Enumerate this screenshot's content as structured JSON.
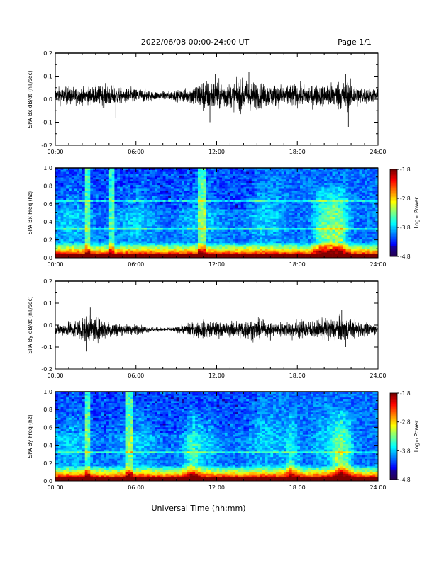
{
  "header": {
    "date_range": "2022/06/08  00:00-24:00 UT",
    "page": "Page 1/1"
  },
  "xaxis_label": "Universal Time (hh:mm)",
  "chart_data": [
    {
      "type": "line",
      "ylabel": "SPA Bx dB/dt (nT/sec)",
      "xlim": [
        0,
        24
      ],
      "ylim": [
        -0.2,
        0.2
      ],
      "x_ticks": [
        "00:00",
        "06:00",
        "12:00",
        "18:00",
        "24:00"
      ],
      "y_ticks": [
        "-0.2",
        "-0.1",
        "0.0",
        "0.1",
        "0.2"
      ],
      "grid": false,
      "x": [
        0,
        1,
        2,
        3,
        4,
        5,
        6,
        7,
        8,
        9,
        10,
        11,
        12,
        13,
        14,
        15,
        16,
        17,
        18,
        19,
        20,
        21,
        22,
        23,
        24
      ],
      "amplitude": [
        0.03,
        0.035,
        0.03,
        0.035,
        0.04,
        0.028,
        0.03,
        0.02,
        0.015,
        0.02,
        0.03,
        0.06,
        0.055,
        0.045,
        0.06,
        0.05,
        0.04,
        0.045,
        0.04,
        0.04,
        0.04,
        0.055,
        0.05,
        0.03,
        0.025
      ],
      "spikes": [
        {
          "x": 11.9,
          "y": 0.11
        },
        {
          "x": 11.5,
          "y": -0.1
        },
        {
          "x": 14.4,
          "y": 0.12
        },
        {
          "x": 21.6,
          "y": 0.11
        },
        {
          "x": 21.8,
          "y": -0.12
        },
        {
          "x": 4.5,
          "y": -0.08
        }
      ],
      "offset": 0.015
    },
    {
      "type": "heatmap",
      "ylabel": "SPA Bx Freq (hz)",
      "xlim": [
        0,
        24
      ],
      "ylim": [
        0,
        1
      ],
      "x_ticks": [
        "00:00",
        "06:00",
        "12:00",
        "18:00",
        "24:00"
      ],
      "y_ticks": [
        "0.0",
        "0.2",
        "0.4",
        "0.6",
        "0.8",
        "1.0"
      ],
      "colorbar": {
        "label": "Log₁₀ Power",
        "range": [
          -4.8,
          -1.8
        ],
        "ticks": [
          "-1.8",
          "-2.8",
          "-3.8",
          "-4.8"
        ]
      },
      "features": [
        {
          "t": 2.4,
          "kind": "line"
        },
        {
          "t": 4.2,
          "kind": "line"
        },
        {
          "t": 10.9,
          "kind": "line"
        },
        {
          "t": 19.8,
          "kind": "hump"
        },
        {
          "t": 20.6,
          "kind": "hump"
        },
        {
          "t": 21.3,
          "kind": "hump"
        }
      ],
      "horizontal_bands": [
        0.32,
        0.63
      ]
    },
    {
      "type": "line",
      "ylabel": "SPA By dB/dt (nT/sec)",
      "xlim": [
        0,
        24
      ],
      "ylim": [
        -0.2,
        0.2
      ],
      "x_ticks": [
        "00:00",
        "06:00",
        "12:00",
        "18:00",
        "24:00"
      ],
      "y_ticks": [
        "-0.2",
        "-0.1",
        "0.0",
        "0.1",
        "0.2"
      ],
      "grid": false,
      "x": [
        0,
        1,
        2,
        3,
        4,
        5,
        6,
        7,
        8,
        9,
        10,
        11,
        12,
        13,
        14,
        15,
        16,
        17,
        18,
        19,
        20,
        21,
        22,
        23,
        24
      ],
      "amplitude": [
        0.02,
        0.03,
        0.05,
        0.045,
        0.035,
        0.02,
        0.02,
        0.01,
        0.008,
        0.01,
        0.025,
        0.035,
        0.03,
        0.03,
        0.04,
        0.04,
        0.025,
        0.03,
        0.04,
        0.035,
        0.04,
        0.05,
        0.04,
        0.025,
        0.02
      ],
      "spikes": [
        {
          "x": 2.6,
          "y": 0.08
        },
        {
          "x": 2.3,
          "y": -0.12
        },
        {
          "x": 21.3,
          "y": 0.07
        },
        {
          "x": 21.6,
          "y": -0.1
        },
        {
          "x": 16.0,
          "y": -0.07
        }
      ],
      "offset": -0.02
    },
    {
      "type": "heatmap",
      "ylabel": "SPA By Freq (hz)",
      "xlim": [
        0,
        24
      ],
      "ylim": [
        0,
        1
      ],
      "x_ticks": [
        "00:00",
        "06:00",
        "12:00",
        "18:00",
        "24:00"
      ],
      "y_ticks": [
        "0.0",
        "0.2",
        "0.4",
        "0.6",
        "0.8",
        "1.0"
      ],
      "colorbar": {
        "label": "Log₁₀ Power",
        "range": [
          -4.8,
          -1.8
        ],
        "ticks": [
          "-1.8",
          "-2.8",
          "-3.8",
          "-4.8"
        ]
      },
      "features": [
        {
          "t": 2.4,
          "kind": "line"
        },
        {
          "t": 5.5,
          "kind": "line"
        },
        {
          "t": 10.2,
          "kind": "hump"
        },
        {
          "t": 17.6,
          "kind": "hump"
        },
        {
          "t": 21.0,
          "kind": "hump"
        },
        {
          "t": 21.6,
          "kind": "hump"
        }
      ],
      "horizontal_bands": [
        0.33
      ]
    }
  ]
}
